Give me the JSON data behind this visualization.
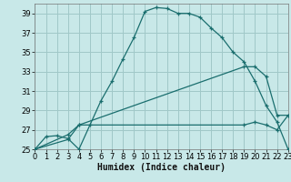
{
  "xlabel": "Humidex (Indice chaleur)",
  "background_color": "#c8e8e8",
  "grid_color": "#a0c8c8",
  "line_color": "#1a6e6e",
  "xlim": [
    0,
    23
  ],
  "ylim": [
    25,
    40
  ],
  "xticks": [
    0,
    1,
    2,
    3,
    4,
    5,
    6,
    7,
    8,
    9,
    10,
    11,
    12,
    13,
    14,
    15,
    16,
    17,
    18,
    19,
    20,
    21,
    22,
    23
  ],
  "yticks": [
    25,
    27,
    29,
    31,
    33,
    35,
    37,
    39
  ],
  "line1_x": [
    0,
    1,
    2,
    3,
    4,
    5,
    6,
    7,
    8,
    9,
    10,
    11,
    12,
    13,
    14,
    15,
    16,
    17,
    18,
    19,
    20,
    21,
    22,
    23
  ],
  "line1_y": [
    25,
    26.3,
    26.4,
    26.1,
    25.0,
    27.5,
    30.0,
    32.0,
    34.3,
    36.5,
    39.2,
    39.6,
    39.5,
    39.0,
    39.0,
    38.6,
    37.5,
    36.5,
    35.0,
    34.0,
    32.0,
    29.5,
    27.8,
    25.0
  ],
  "line2_x": [
    0,
    3,
    4,
    19,
    20,
    21,
    22,
    23
  ],
  "line2_y": [
    25,
    26.5,
    27.5,
    33.5,
    33.5,
    32.5,
    28.5,
    28.5
  ],
  "line3_x": [
    0,
    3,
    4,
    19,
    20,
    21,
    22,
    23
  ],
  "line3_y": [
    25,
    26.0,
    27.5,
    27.5,
    27.8,
    27.5,
    27.0,
    28.5
  ],
  "xlabel_fontsize": 7,
  "tick_fontsize": 6
}
